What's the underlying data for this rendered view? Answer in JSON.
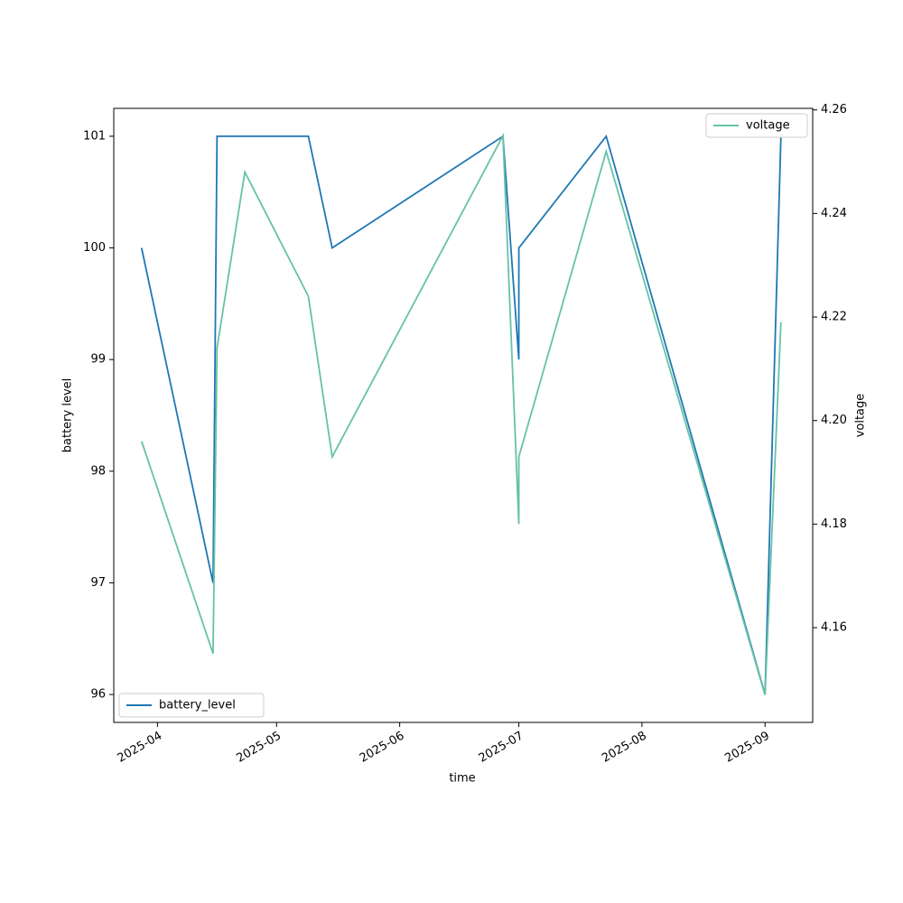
{
  "chart_data": {
    "type": "line",
    "x_label": "time",
    "y_label": "battery level",
    "y2_label": "voltage",
    "x": [
      "2025-03-28",
      "2025-04-15",
      "2025-04-16",
      "2025-04-23",
      "2025-05-09",
      "2025-05-15",
      "2025-06-27",
      "2025-07-01",
      "2025-07-01",
      "2025-07-23",
      "2025-09-01",
      "2025-09-05"
    ],
    "series": [
      {
        "name": "battery_level",
        "color": "#1f77b4",
        "axis": "y",
        "legend_loc": "lower left",
        "values": [
          100,
          97,
          101,
          101,
          101,
          100,
          101,
          99,
          100,
          101,
          96,
          101
        ]
      },
      {
        "name": "voltage",
        "color": "#66c2a5",
        "axis": "y2",
        "legend_loc": "upper right",
        "values": [
          4.196,
          4.155,
          4.214,
          4.248,
          4.224,
          4.193,
          4.255,
          4.18,
          4.193,
          4.252,
          4.147,
          4.219
        ]
      }
    ],
    "xlim": [
      "2025-03-21",
      "2025-09-13"
    ],
    "xticks": [
      {
        "value": "2025-04-01",
        "label": "2025-04"
      },
      {
        "value": "2025-05-01",
        "label": "2025-05"
      },
      {
        "value": "2025-06-01",
        "label": "2025-06"
      },
      {
        "value": "2025-07-01",
        "label": "2025-07"
      },
      {
        "value": "2025-08-01",
        "label": "2025-08"
      },
      {
        "value": "2025-09-01",
        "label": "2025-09"
      }
    ],
    "ylim": [
      95.75,
      101.25
    ],
    "yticks": [
      96,
      97,
      98,
      99,
      100,
      101
    ],
    "y2lim": [
      4.1417,
      4.2603
    ],
    "y2ticks": [
      4.16,
      4.18,
      {
        "value": 4.2,
        "label": "4.20"
      },
      4.22,
      4.24,
      4.26
    ],
    "grid": false
  }
}
